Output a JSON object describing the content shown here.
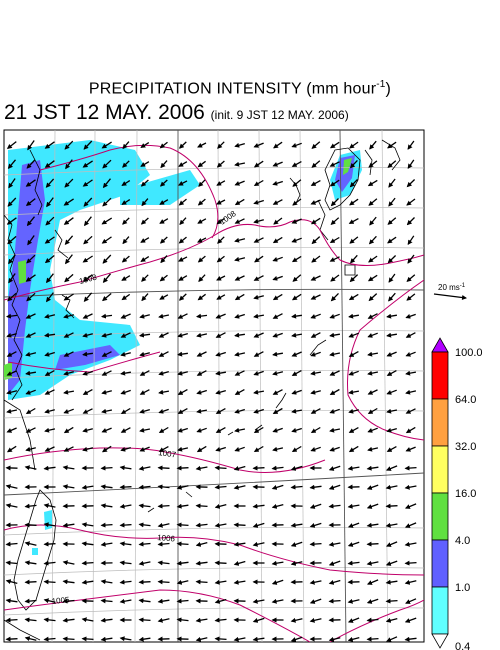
{
  "title": {
    "main_prefix": "PRECIPITATION INTENSITY (mm hour",
    "main_exp": "-1",
    "main_suffix": ")",
    "valid_time": "21 JST 12 MAY. 2006",
    "init_time": "(init. 9 JST 12 MAY. 2006)"
  },
  "scale_arrow": {
    "label": "20 ms",
    "exp": "-1"
  },
  "colorbar": {
    "levels": [
      "100.0",
      "64.0",
      "32.0",
      "16.0",
      "4.0",
      "1.0",
      "0.4"
    ],
    "colors": [
      "#ff0000",
      "#ffa040",
      "#ffff60",
      "#60e040",
      "#6060ff",
      "#60ffff"
    ],
    "top_cap_color": "#b000ff",
    "bottom_cap_color": "#ffffff"
  },
  "isobars": {
    "labels": [
      "1008",
      "1008",
      "1007",
      "1006",
      "1005"
    ],
    "color": "#c0006a"
  },
  "precip_colors": {
    "light": "#40e8ff",
    "moderate": "#6464ff",
    "heavy": "#60e040"
  }
}
